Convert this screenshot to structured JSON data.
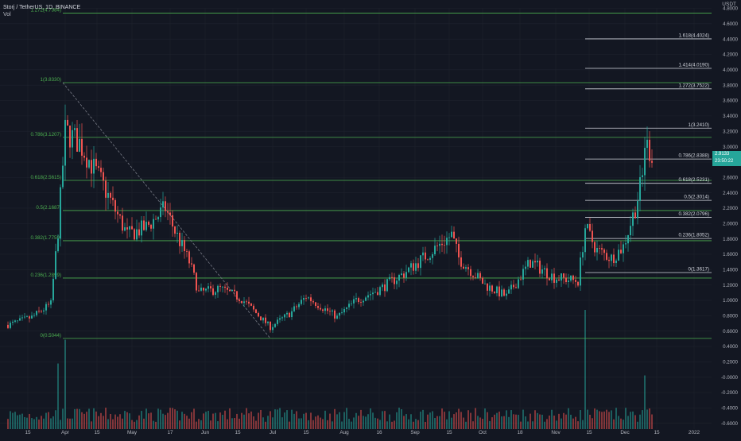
{
  "header": {
    "symbol_title": "Storj / TetherUS, 1D, BINANCE",
    "volume_label": "Vol"
  },
  "price_axis": {
    "currency": "USDT",
    "labels": [
      "4.8000",
      "4.6000",
      "4.4000",
      "4.2000",
      "4.0000",
      "3.8000",
      "3.6000",
      "3.4000",
      "3.2000",
      "3.0000",
      "2.8000",
      "2.6000",
      "2.4000",
      "2.2000",
      "2.0000",
      "1.8000",
      "1.6000",
      "1.4000",
      "1.2000",
      "1.0000",
      "0.8000",
      "0.6000",
      "0.4000",
      "0.2000",
      "-0.0000",
      "-0.2000",
      "-0.4000",
      "-0.6000"
    ],
    "last_price": "2.9133",
    "countdown": "23:50:22"
  },
  "time_axis": {
    "labels": [
      "15",
      "Apr",
      "15",
      "May",
      "17",
      "Jun",
      "15",
      "Jul",
      "15",
      "Aug",
      "16",
      "Sep",
      "15",
      "Oct",
      "18",
      "Nov",
      "15",
      "Dec",
      "15",
      "2022"
    ]
  },
  "fib_retracement": {
    "levels": [
      {
        "text": "1.272(4.7384)",
        "price": 4.7384
      },
      {
        "text": "1(3.8330)",
        "price": 3.833
      },
      {
        "text": "0.786(3.1207)",
        "price": 3.1207
      },
      {
        "text": "0.618(2.5615)",
        "price": 2.5615
      },
      {
        "text": "0.5(2.1687)",
        "price": 2.1687
      },
      {
        "text": "0.382(1.7759)",
        "price": 1.7759
      },
      {
        "text": "0.236(1.2899)",
        "price": 1.2899
      },
      {
        "text": "0(0.5044)",
        "price": 0.5044
      }
    ]
  },
  "fib_extension": {
    "levels": [
      {
        "text": "1.618(4.4024)",
        "price": 4.4024
      },
      {
        "text": "1.414(4.0190)",
        "price": 4.019
      },
      {
        "text": "1.272(3.7522)",
        "price": 3.7522
      },
      {
        "text": "1(3.2410)",
        "price": 3.241
      },
      {
        "text": "0.786(2.8388)",
        "price": 2.8388
      },
      {
        "text": "0.618(2.5231)",
        "price": 2.5231
      },
      {
        "text": "0.5(2.3014)",
        "price": 2.3014
      },
      {
        "text": "0.382(2.0796)",
        "price": 2.0796
      },
      {
        "text": "0.236(1.8052)",
        "price": 1.8052
      },
      {
        "text": "0(1.3617)",
        "price": 1.3617
      }
    ]
  },
  "colors": {
    "background": "#131722",
    "grid": "#1e222d",
    "up": "#26a69a",
    "down": "#ef5350",
    "fib_green": "#4caf50",
    "fib_white": "#d1d4dc",
    "axis_text": "#b2b5be"
  },
  "chart_data": {
    "type": "candlestick",
    "title": "Storj / TetherUS, 1D, BINANCE",
    "x_range": [
      "2021-03-04",
      "2022-01-10"
    ],
    "y_range": [
      -0.6,
      4.8
    ],
    "trend_line": {
      "from": {
        "date": "2021-03-27",
        "price": 3.833
      },
      "to": {
        "date": "2021-06-22",
        "price": 0.5044
      }
    },
    "close_anchors": [
      {
        "date": "2021-03-04",
        "price": 0.68
      },
      {
        "date": "2021-03-14",
        "price": 0.78
      },
      {
        "date": "2021-03-22",
        "price": 0.95
      },
      {
        "date": "2021-03-25",
        "price": 1.9
      },
      {
        "date": "2021-03-28",
        "price": 3.2
      },
      {
        "date": "2021-04-03",
        "price": 3.05
      },
      {
        "date": "2021-04-12",
        "price": 2.55
      },
      {
        "date": "2021-04-23",
        "price": 1.85
      },
      {
        "date": "2021-05-01",
        "price": 1.95
      },
      {
        "date": "2021-05-09",
        "price": 2.2
      },
      {
        "date": "2021-05-13",
        "price": 1.9
      },
      {
        "date": "2021-05-19",
        "price": 1.5
      },
      {
        "date": "2021-05-23",
        "price": 1.1
      },
      {
        "date": "2021-06-01",
        "price": 1.15
      },
      {
        "date": "2021-06-10",
        "price": 1.02
      },
      {
        "date": "2021-06-22",
        "price": 0.65
      },
      {
        "date": "2021-07-01",
        "price": 0.85
      },
      {
        "date": "2021-07-07",
        "price": 1.05
      },
      {
        "date": "2021-07-20",
        "price": 0.78
      },
      {
        "date": "2021-07-28",
        "price": 1.0
      },
      {
        "date": "2021-08-07",
        "price": 1.15
      },
      {
        "date": "2021-08-17",
        "price": 1.35
      },
      {
        "date": "2021-08-27",
        "price": 1.6
      },
      {
        "date": "2021-09-06",
        "price": 1.85
      },
      {
        "date": "2021-09-09",
        "price": 1.55
      },
      {
        "date": "2021-09-20",
        "price": 1.2
      },
      {
        "date": "2021-09-29",
        "price": 1.05
      },
      {
        "date": "2021-10-09",
        "price": 1.5
      },
      {
        "date": "2021-10-19",
        "price": 1.3
      },
      {
        "date": "2021-10-29",
        "price": 1.25
      },
      {
        "date": "2021-11-01",
        "price": 1.95
      },
      {
        "date": "2021-11-06",
        "price": 1.65
      },
      {
        "date": "2021-11-12",
        "price": 1.55
      },
      {
        "date": "2021-11-17",
        "price": 1.7
      },
      {
        "date": "2021-11-22",
        "price": 2.2
      },
      {
        "date": "2021-11-25",
        "price": 2.6
      },
      {
        "date": "2021-11-26",
        "price": 3.05
      },
      {
        "date": "2021-11-29",
        "price": 2.91
      }
    ],
    "volume_spikes": [
      {
        "date": "2021-03-25",
        "relative": 0.55
      },
      {
        "date": "2021-03-28",
        "relative": 0.75
      },
      {
        "date": "2021-11-01",
        "relative": 1.0
      },
      {
        "date": "2021-11-26",
        "relative": 0.45
      }
    ]
  }
}
